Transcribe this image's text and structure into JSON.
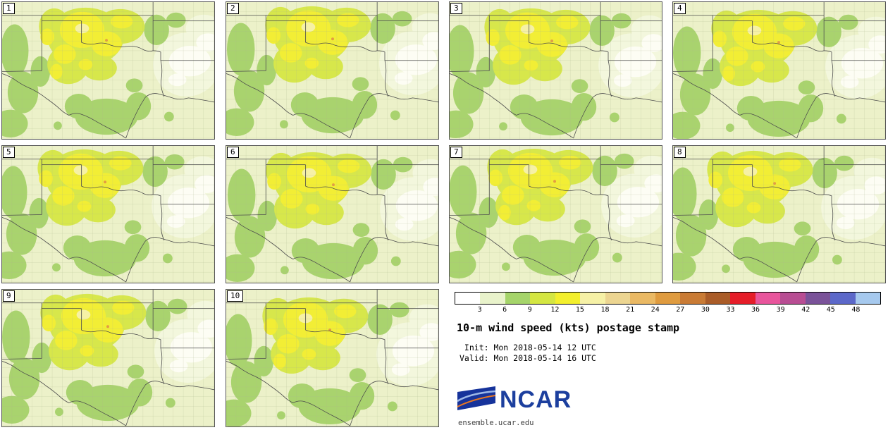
{
  "panels": [
    {
      "label": "1"
    },
    {
      "label": "2"
    },
    {
      "label": "3"
    },
    {
      "label": "4"
    },
    {
      "label": "5"
    },
    {
      "label": "6"
    },
    {
      "label": "7"
    },
    {
      "label": "8"
    },
    {
      "label": "9"
    },
    {
      "label": "10"
    }
  ],
  "colorbar": {
    "ticks": [
      "3",
      "6",
      "9",
      "12",
      "15",
      "18",
      "21",
      "24",
      "27",
      "30",
      "33",
      "36",
      "39",
      "42",
      "45",
      "48"
    ],
    "colors": [
      "#ffffff",
      "#e9f3cb",
      "#a5d46a",
      "#d4e642",
      "#f3ef2d",
      "#f6f1a6",
      "#ecd591",
      "#eab964",
      "#df9b3f",
      "#c97b35",
      "#aa5c28",
      "#e51d29",
      "#e8559c",
      "#b84d93",
      "#7a5299",
      "#5c68c9",
      "#a6c9ee"
    ]
  },
  "legend": {
    "title": "10-m wind speed (kts) postage stamp",
    "init": " Init: Mon 2018-05-14 12 UTC",
    "valid": "Valid: Mon 2018-05-14 16 UTC"
  },
  "logo": {
    "wordmark": "NCAR",
    "site": "ensemble.ucar.edu"
  },
  "map_palette": {
    "background": "#ecf1c9",
    "low_wash": "#f3f7dd",
    "calm_white": "#fdfdf4",
    "green_9_12": "#a9d36e",
    "yellowgreen_12_15": "#d7e74b",
    "yellow_15_18": "#f2ee35",
    "pale_yellow_18_21": "#f6f1a6",
    "orange_speck": "#e39c42",
    "border_line": "#4d4d4d"
  }
}
